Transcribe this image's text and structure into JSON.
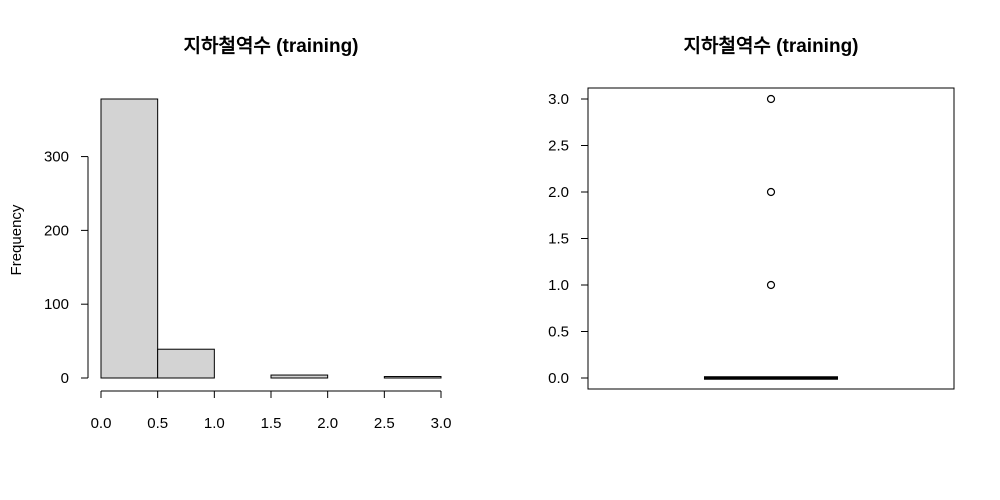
{
  "chart_data": [
    {
      "type": "bar",
      "title": "지하철역수 (training)",
      "xlabel": "",
      "ylabel": "Frequency",
      "bins": [
        {
          "from": 0.0,
          "to": 0.5,
          "count": 378
        },
        {
          "from": 0.5,
          "to": 1.0,
          "count": 39
        },
        {
          "from": 1.0,
          "to": 1.5,
          "count": 0
        },
        {
          "from": 1.5,
          "to": 2.0,
          "count": 4
        },
        {
          "from": 2.0,
          "to": 2.5,
          "count": 0
        },
        {
          "from": 2.5,
          "to": 3.0,
          "count": 2
        }
      ],
      "xlim": [
        0,
        3
      ],
      "ylim": [
        0,
        378
      ],
      "x_ticks": [
        "0.0",
        "0.5",
        "1.0",
        "1.5",
        "2.0",
        "2.5",
        "3.0"
      ],
      "y_ticks": [
        "0",
        "100",
        "200",
        "300"
      ],
      "bar_color": "#d3d3d3",
      "grid": false
    },
    {
      "type": "box",
      "title": "지하철역수 (training)",
      "xlabel": "",
      "ylabel": "",
      "median": 0.0,
      "q1": 0.0,
      "q3": 0.0,
      "whisker_low": 0.0,
      "whisker_high": 0.0,
      "outliers": [
        1.0,
        2.0,
        3.0
      ],
      "ylim": [
        0,
        3
      ],
      "y_ticks": [
        "0.0",
        "0.5",
        "1.0",
        "1.5",
        "2.0",
        "2.5",
        "3.0"
      ],
      "grid": false
    }
  ]
}
